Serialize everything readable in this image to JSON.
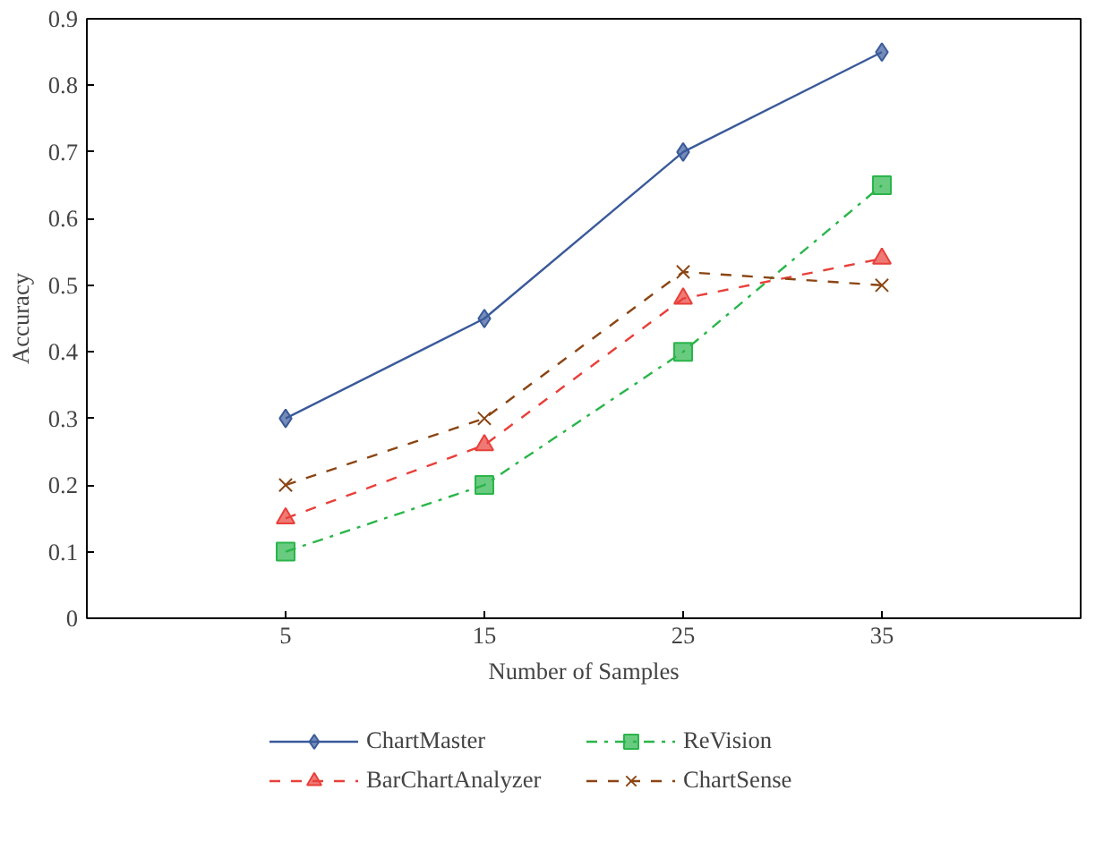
{
  "chart_data": {
    "type": "line",
    "xlabel": "Number of Samples",
    "ylabel": "Accuracy",
    "categories": [
      "5",
      "15",
      "25",
      "35"
    ],
    "ylim": [
      0,
      0.9
    ],
    "yticks": [
      0,
      0.1,
      0.2,
      0.3,
      0.4,
      0.5,
      0.6,
      0.7,
      0.8,
      0.9
    ],
    "grid": false,
    "legend": "bottom",
    "series": [
      {
        "name": "ChartMaster",
        "color": "#3a5a9a",
        "marker": "diamond",
        "line_style": "solid",
        "values": [
          0.3,
          0.45,
          0.7,
          0.85
        ]
      },
      {
        "name": "BarChartAnalyzer",
        "color": "#e8403a",
        "marker": "triangle",
        "line_style": "dashed",
        "values": [
          0.15,
          0.26,
          0.48,
          0.54
        ]
      },
      {
        "name": "ReVision",
        "color": "#2ab54a",
        "marker": "square",
        "line_style": "dashdot",
        "values": [
          0.1,
          0.2,
          0.4,
          0.65
        ]
      },
      {
        "name": "ChartSense",
        "color": "#8b4513",
        "marker": "cross",
        "line_style": "dashed",
        "values": [
          0.2,
          0.3,
          0.52,
          0.5
        ]
      }
    ]
  }
}
